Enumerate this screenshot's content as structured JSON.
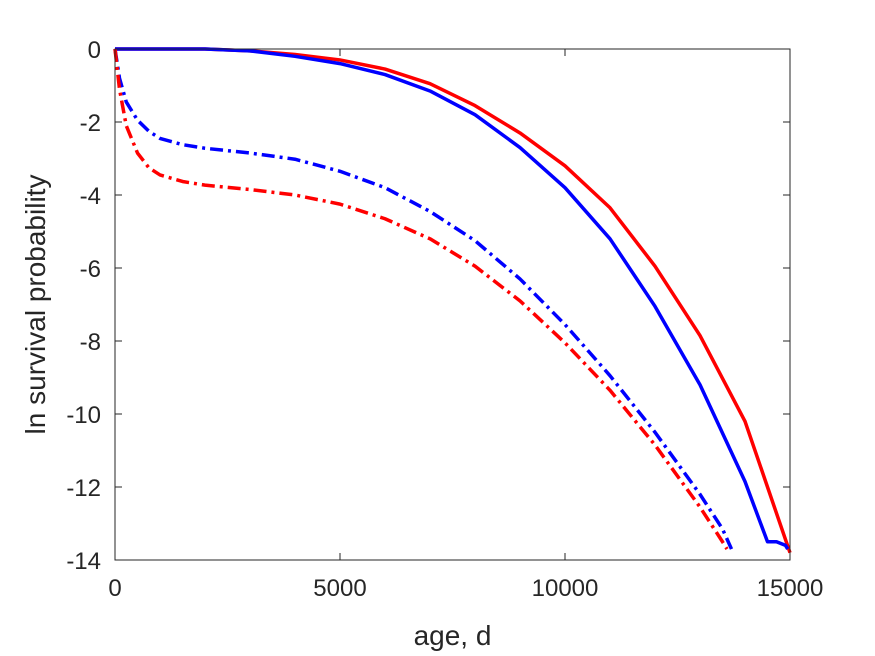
{
  "chart_data": {
    "type": "line",
    "title": "",
    "xlabel": "age, d",
    "ylabel": "ln survival probability",
    "xlim": [
      0,
      15000
    ],
    "ylim": [
      -14,
      0
    ],
    "xticks": [
      0,
      5000,
      10000,
      15000
    ],
    "yticks": [
      0,
      -2,
      -4,
      -6,
      -8,
      -10,
      -12,
      -14
    ],
    "grid": false,
    "legend": "none",
    "series": [
      {
        "color": "#ff0000",
        "style": "solid",
        "x": [
          0,
          1000,
          2000,
          3000,
          4000,
          5000,
          6000,
          7000,
          8000,
          9000,
          10000,
          11000,
          12000,
          13000,
          14000,
          15000
        ],
        "y": [
          0,
          0,
          0,
          -0.05,
          -0.15,
          -0.3,
          -0.55,
          -0.95,
          -1.55,
          -2.3,
          -3.2,
          -4.35,
          -5.95,
          -7.85,
          -10.2,
          -13.8
        ]
      },
      {
        "color": "#0000ff",
        "style": "solid",
        "x": [
          0,
          1000,
          2000,
          3000,
          4000,
          5000,
          6000,
          7000,
          8000,
          9000,
          10000,
          11000,
          12000,
          13000,
          14000,
          14500,
          14700,
          14900,
          14950
        ],
        "y": [
          0,
          0,
          0,
          -0.05,
          -0.2,
          -0.4,
          -0.7,
          -1.15,
          -1.8,
          -2.7,
          -3.8,
          -5.2,
          -7.05,
          -9.2,
          -11.85,
          -13.5,
          -13.5,
          -13.6,
          -13.7
        ]
      },
      {
        "color": "#0000ff",
        "style": "dashdot",
        "x": [
          0,
          100,
          250,
          500,
          750,
          1000,
          1500,
          2000,
          3000,
          4000,
          5000,
          6000,
          7000,
          8000,
          9000,
          10000,
          11000,
          12000,
          13000,
          13500,
          13700
        ],
        "y": [
          0,
          -0.8,
          -1.45,
          -1.95,
          -2.25,
          -2.45,
          -2.62,
          -2.72,
          -2.85,
          -3.02,
          -3.35,
          -3.8,
          -4.45,
          -5.25,
          -6.3,
          -7.55,
          -8.95,
          -10.5,
          -12.2,
          -13.15,
          -13.7
        ]
      },
      {
        "color": "#ff0000",
        "style": "dashdot",
        "x": [
          0,
          100,
          250,
          500,
          750,
          1000,
          1500,
          2000,
          3000,
          4000,
          5000,
          6000,
          7000,
          8000,
          9000,
          10000,
          11000,
          12000,
          13000,
          13500,
          13600
        ],
        "y": [
          0,
          -1.1,
          -2.1,
          -2.85,
          -3.25,
          -3.45,
          -3.63,
          -3.73,
          -3.85,
          -4.0,
          -4.25,
          -4.65,
          -5.2,
          -5.95,
          -6.9,
          -8.05,
          -9.35,
          -10.85,
          -12.55,
          -13.5,
          -13.7
        ]
      }
    ]
  }
}
